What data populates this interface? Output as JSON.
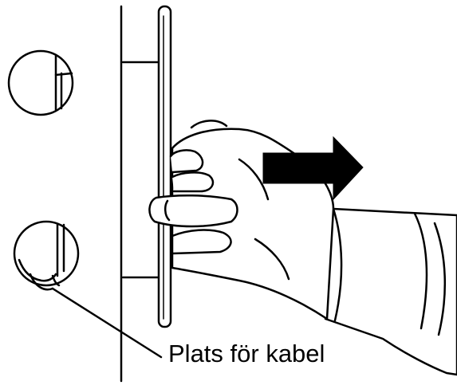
{
  "illustration": {
    "callout_label": "Plats för kabel",
    "arrow_direction": "right",
    "line_color": "#000000",
    "fill_color": "#ffffff",
    "arrow_color": "#000000",
    "icons": [
      "pull-arrow-icon",
      "hand-icon",
      "magnifier-circle-top",
      "magnifier-circle-bottom"
    ]
  }
}
